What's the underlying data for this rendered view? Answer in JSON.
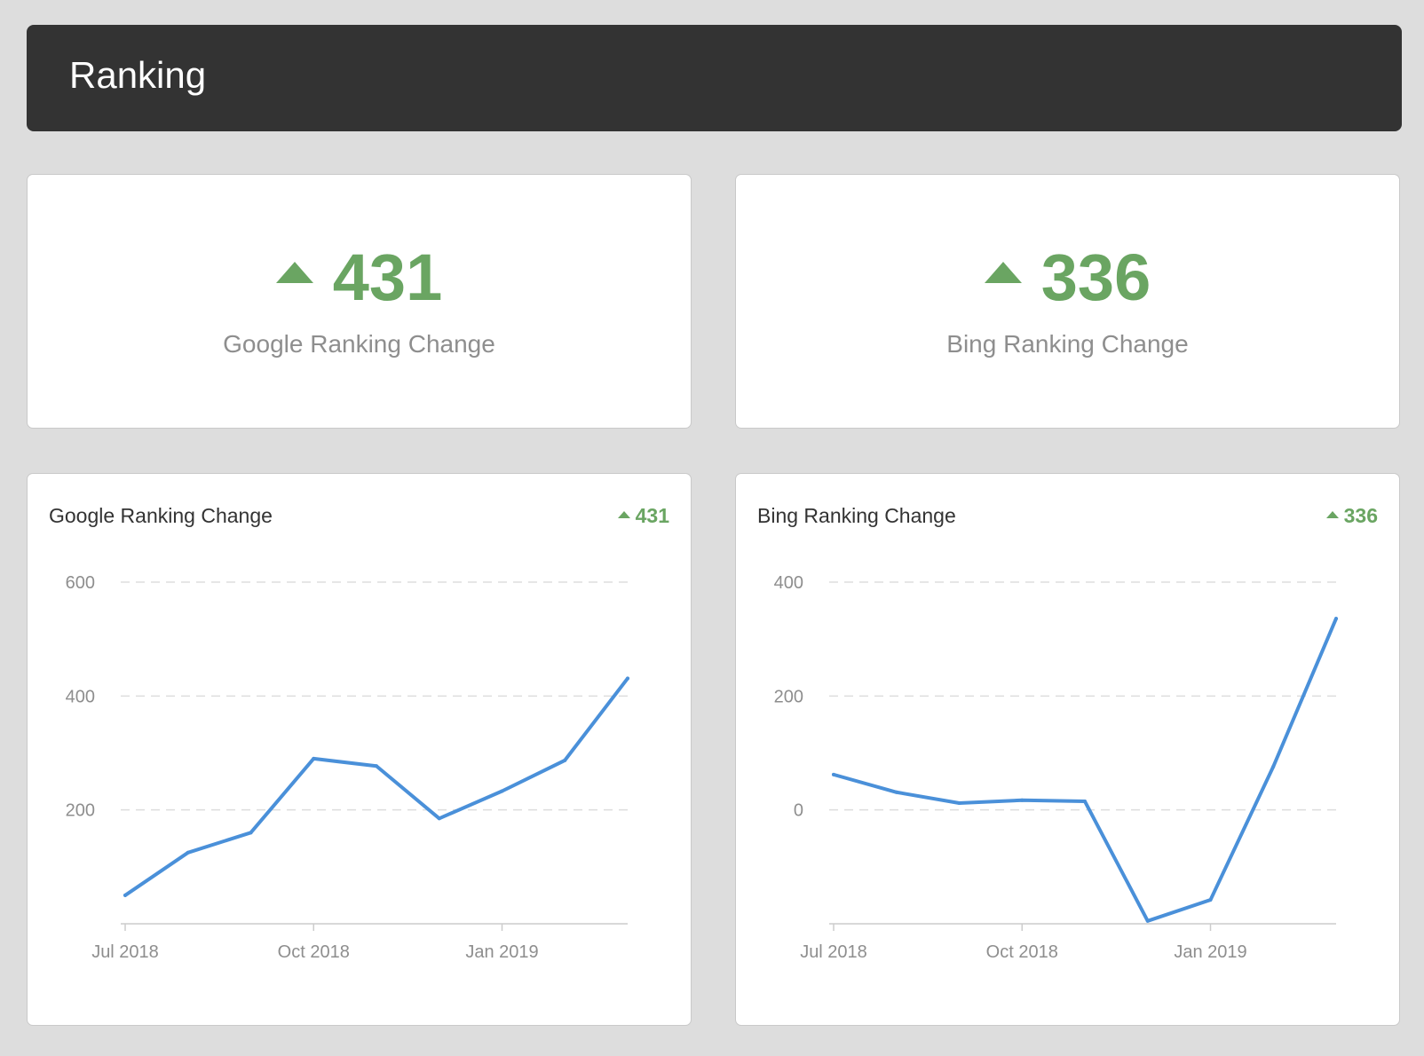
{
  "header": {
    "title": "Ranking"
  },
  "kpis": [
    {
      "direction": "up",
      "value": "431",
      "label": "Google Ranking Change"
    },
    {
      "direction": "up",
      "value": "336",
      "label": "Bing Ranking Change"
    }
  ],
  "colors": {
    "positive": "#6aa562",
    "line": "#4a90d9",
    "grid": "#dddddd",
    "axis_text": "#8e8e8e",
    "header_bg": "#333333"
  },
  "charts": [
    {
      "title": "Google Ranking Change",
      "badge": "431"
    },
    {
      "title": "Bing Ranking Change",
      "badge": "336"
    }
  ],
  "chart_data": [
    {
      "type": "line",
      "title": "Google Ranking Change",
      "x": [
        "Jul 2018",
        "Aug 2018",
        "Sep 2018",
        "Oct 2018",
        "Nov 2018",
        "Dec 2018",
        "Jan 2019",
        "Feb 2019",
        "Mar 2019"
      ],
      "series": [
        {
          "name": "Google Ranking Change",
          "values": [
            50,
            125,
            160,
            290,
            277,
            185,
            233,
            287,
            431
          ]
        }
      ],
      "xticks": [
        "Jul 2018",
        "Oct 2018",
        "Jan 2019"
      ],
      "xtick_index": [
        0,
        3,
        6
      ],
      "yticks": [
        200,
        400,
        600
      ],
      "ylim": [
        0,
        600
      ],
      "grid": true,
      "xlabel": "",
      "ylabel": ""
    },
    {
      "type": "line",
      "title": "Bing Ranking Change",
      "x": [
        "Jul 2018",
        "Aug 2018",
        "Sep 2018",
        "Oct 2018",
        "Nov 2018",
        "Dec 2018",
        "Jan 2019",
        "Feb 2019",
        "Mar 2019"
      ],
      "series": [
        {
          "name": "Bing Ranking Change",
          "values": [
            62,
            31,
            12,
            17,
            15,
            -195,
            -158,
            76,
            336
          ]
        }
      ],
      "xticks": [
        "Jul 2018",
        "Oct 2018",
        "Jan 2019"
      ],
      "xtick_index": [
        0,
        3,
        6
      ],
      "yticks": [
        0,
        200,
        400
      ],
      "ylim": [
        -200,
        400
      ],
      "grid": true,
      "xlabel": "",
      "ylabel": ""
    }
  ]
}
